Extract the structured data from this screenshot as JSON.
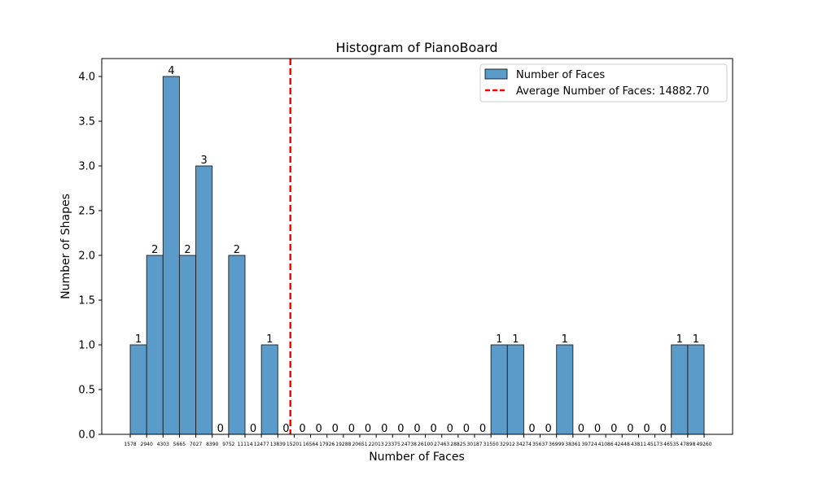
{
  "chart_data": {
    "type": "bar",
    "title": "Histogram of PianoBoard",
    "xlabel": "Number of Faces",
    "ylabel": "Number of Shapes",
    "ylim": [
      0,
      4.2
    ],
    "yticks": [
      "0.0",
      "0.5",
      "1.0",
      "1.5",
      "2.0",
      "2.5",
      "3.0",
      "3.5",
      "4.0"
    ],
    "xtick_labels": [
      "1578",
      "2940",
      "4303",
      "5665",
      "7027",
      "8390",
      "9752",
      "11114",
      "12477",
      "13839",
      "15201",
      "16564",
      "17926",
      "19288",
      "20651",
      "22013",
      "23375",
      "24738",
      "26100",
      "27463",
      "28825",
      "30187",
      "31550",
      "32912",
      "34274",
      "35637",
      "36999",
      "38361",
      "39724",
      "41086",
      "42448",
      "43811",
      "45173",
      "46535",
      "47898",
      "49260"
    ],
    "values": [
      1,
      2,
      4,
      2,
      3,
      0,
      2,
      0,
      1,
      0,
      0,
      0,
      0,
      0,
      0,
      0,
      0,
      0,
      0,
      0,
      0,
      0,
      1,
      1,
      0,
      0,
      1,
      0,
      0,
      0,
      0,
      0,
      0,
      1,
      1
    ],
    "data_labels": [
      "1",
      "2",
      "4",
      "2",
      "3",
      "0",
      "2",
      "0",
      "1",
      "0",
      "0",
      "0",
      "0",
      "0",
      "0",
      "0",
      "0",
      "0",
      "0",
      "0",
      "0",
      "0",
      "1",
      "1",
      "0",
      "0",
      "1",
      "0",
      "0",
      "0",
      "0",
      "0",
      "0",
      "1",
      "1"
    ],
    "series": [
      {
        "name": "Number of Faces",
        "color": "#5b9bc9"
      }
    ],
    "average": {
      "value": 14882.7,
      "label": "Average Number of Faces: 14882.70",
      "color": "#ff0000"
    },
    "legend_position": "top-right"
  }
}
